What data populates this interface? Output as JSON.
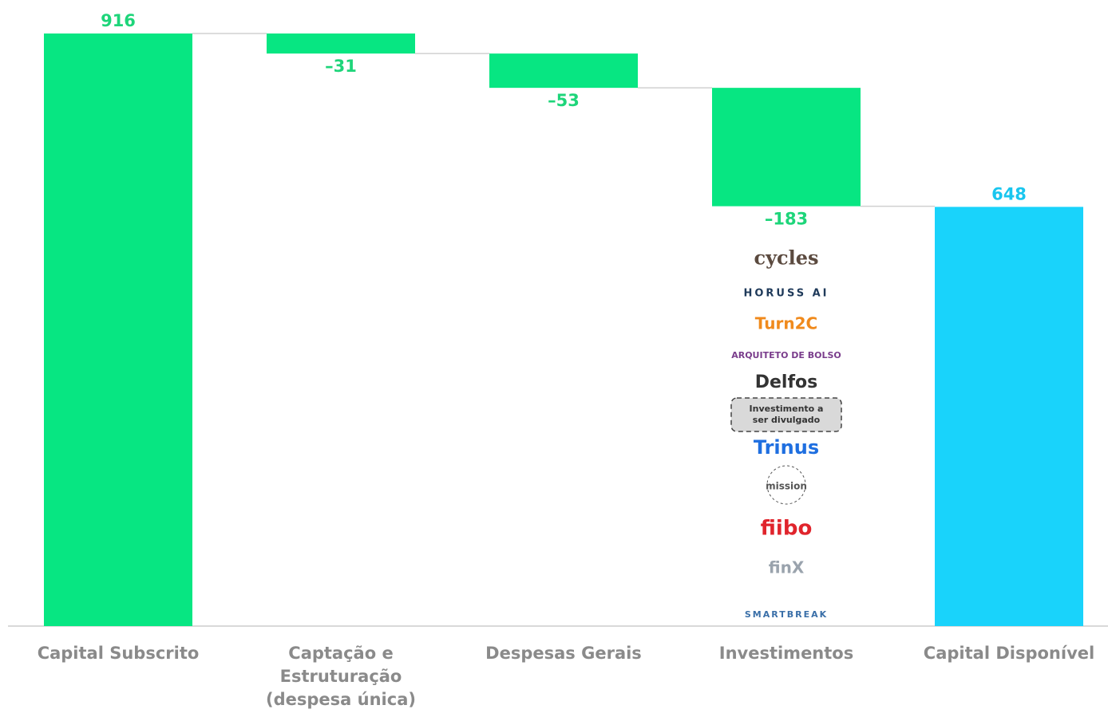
{
  "chart_data": {
    "type": "waterfall",
    "categories": [
      "Capital Subscrito",
      "Captação e Estruturação (despesa única)",
      "Despesas Gerais",
      "Investimentos",
      "Capital Disponível"
    ],
    "values": [
      916,
      -31,
      -53,
      -183,
      648
    ],
    "value_labels": [
      "916",
      "–31",
      "–53",
      "–183",
      "648"
    ],
    "kinds": [
      "total",
      "delta",
      "delta",
      "delta",
      "total"
    ],
    "colors": [
      "#07e682",
      "#07e682",
      "#07e682",
      "#07e682",
      "#19d3fb"
    ],
    "label_colors": [
      "#1ed57a",
      "#1ed57a",
      "#1ed57a",
      "#1ed57a",
      "#19c6ef"
    ],
    "logos": [
      "cycles",
      "HORUSS AI",
      "Turn2C",
      "ARQUITETO DE BOLSO",
      "Delfos",
      "Investimento a ser divulgado",
      "Trinus",
      "mission",
      "fiibo",
      "finX",
      "SMARTBREAK"
    ]
  }
}
